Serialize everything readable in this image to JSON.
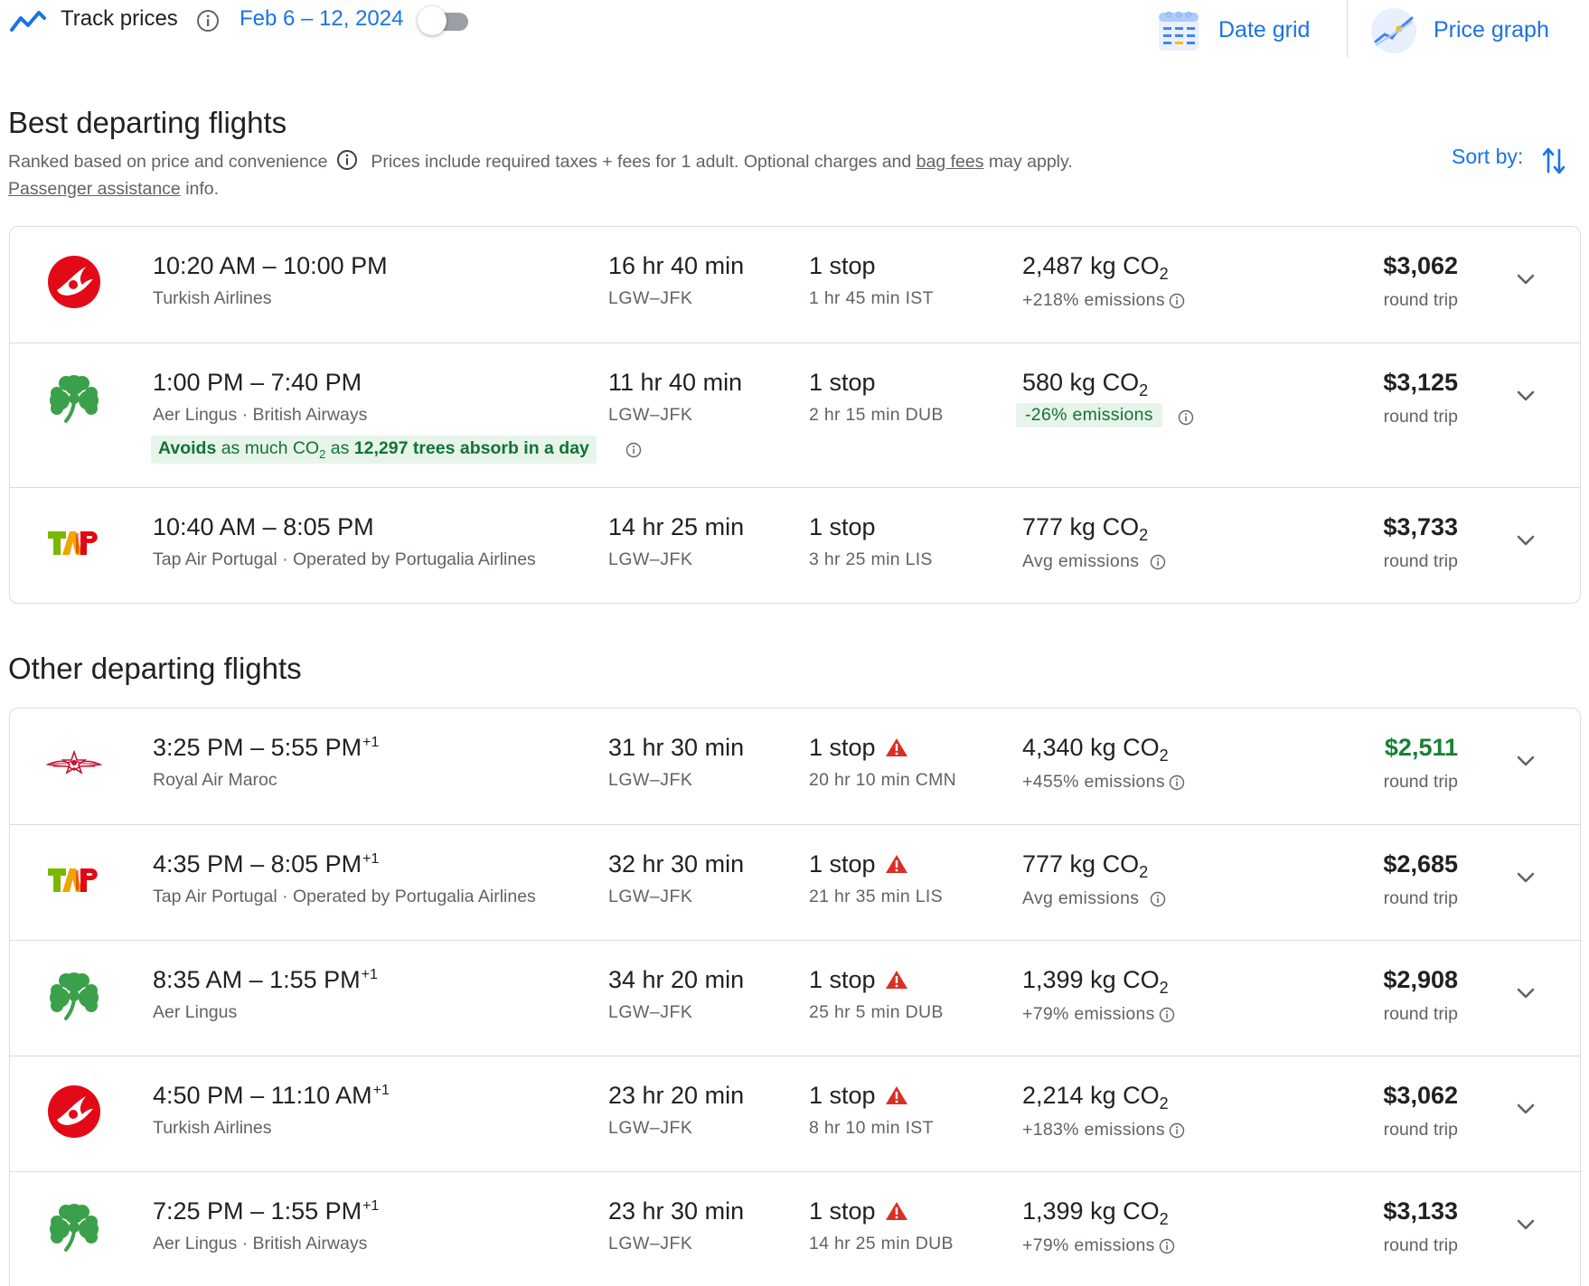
{
  "header": {
    "track_label": "Track prices",
    "date_range": "Feb 6 – 12, 2024",
    "date_grid_label": "Date grid",
    "price_graph_label": "Price graph"
  },
  "best": {
    "title": "Best departing flights",
    "ranked_text": "Ranked based on price and convenience",
    "prices_text_1": "Prices include required taxes + fees for 1 adult. Optional charges and ",
    "bag_fees": "bag fees",
    "prices_text_2": " may apply.",
    "passenger_assistance": "Passenger assistance",
    "info_suffix": " info.",
    "sort_label": "Sort by:",
    "flights": [
      {
        "logo": "turkish",
        "depart": "10:20 AM",
        "arrive": "10:00 PM",
        "plus": "",
        "airline": "Turkish Airlines",
        "duration": "16 hr 40 min",
        "route": "LGW–JFK",
        "stops": "1 stop",
        "layover": "1 hr 45 min IST",
        "co2": "2,487 kg CO",
        "emissions": "+218% emissions",
        "price": "$3,062",
        "trip": "round trip"
      },
      {
        "logo": "aerlingus",
        "depart": "1:00 PM",
        "arrive": "7:40 PM",
        "plus": "",
        "airline": "Aer Lingus · British Airways",
        "duration": "11 hr 40 min",
        "route": "LGW–JFK",
        "stops": "1 stop",
        "layover": "2 hr 15 min DUB",
        "co2": "580 kg CO",
        "emissions": "-26% emissions",
        "price": "$3,125",
        "trip": "round trip",
        "eco_avoids": "Avoids",
        "eco_mid": " as much CO",
        "eco_as": " as ",
        "eco_trees": "12,297 trees absorb in a day"
      },
      {
        "logo": "tap",
        "depart": "10:40 AM",
        "arrive": "8:05 PM",
        "plus": "",
        "airline": "Tap Air Portugal · Operated by Portugalia Airlines",
        "duration": "14 hr 25 min",
        "route": "LGW–JFK",
        "stops": "1 stop",
        "layover": "3 hr 25 min LIS",
        "co2": "777 kg CO",
        "emissions": "Avg emissions",
        "price": "$3,733",
        "trip": "round trip"
      }
    ]
  },
  "other": {
    "title": "Other departing flights",
    "flights": [
      {
        "logo": "royalairmaroc",
        "depart": "3:25 PM",
        "arrive": "5:55 PM",
        "plus": "+1",
        "airline": "Royal Air Maroc",
        "duration": "31 hr 30 min",
        "route": "LGW–JFK",
        "stops": "1 stop",
        "layover": "20 hr 10 min CMN",
        "co2": "4,340 kg CO",
        "emissions": "+455% emissions",
        "price": "$2,511",
        "trip": "round trip"
      },
      {
        "logo": "tap",
        "depart": "4:35 PM",
        "arrive": "8:05 PM",
        "plus": "+1",
        "airline": "Tap Air Portugal · Operated by Portugalia Airlines",
        "duration": "32 hr 30 min",
        "route": "LGW–JFK",
        "stops": "1 stop",
        "layover": "21 hr 35 min LIS",
        "co2": "777 kg CO",
        "emissions": "Avg emissions",
        "price": "$2,685",
        "trip": "round trip"
      },
      {
        "logo": "aerlingus",
        "depart": "8:35 AM",
        "arrive": "1:55 PM",
        "plus": "+1",
        "airline": "Aer Lingus",
        "duration": "34 hr 20 min",
        "route": "LGW–JFK",
        "stops": "1 stop",
        "layover": "25 hr 5 min DUB",
        "co2": "1,399 kg CO",
        "emissions": "+79% emissions",
        "price": "$2,908",
        "trip": "round trip"
      },
      {
        "logo": "turkish",
        "depart": "4:50 PM",
        "arrive": "11:10 AM",
        "plus": "+1",
        "airline": "Turkish Airlines",
        "duration": "23 hr 20 min",
        "route": "LGW–JFK",
        "stops": "1 stop",
        "layover": "8 hr 10 min IST",
        "co2": "2,214 kg CO",
        "emissions": "+183% emissions",
        "price": "$3,062",
        "trip": "round trip"
      },
      {
        "logo": "aerlingus",
        "depart": "7:25 PM",
        "arrive": "1:55 PM",
        "plus": "+1",
        "airline": "Aer Lingus · British Airways",
        "duration": "23 hr 30 min",
        "route": "LGW–JFK",
        "stops": "1 stop",
        "layover": "14 hr 25 min DUB",
        "co2": "1,399 kg CO",
        "emissions": "+79% emissions",
        "price": "$3,133",
        "trip": "round trip"
      }
    ]
  }
}
